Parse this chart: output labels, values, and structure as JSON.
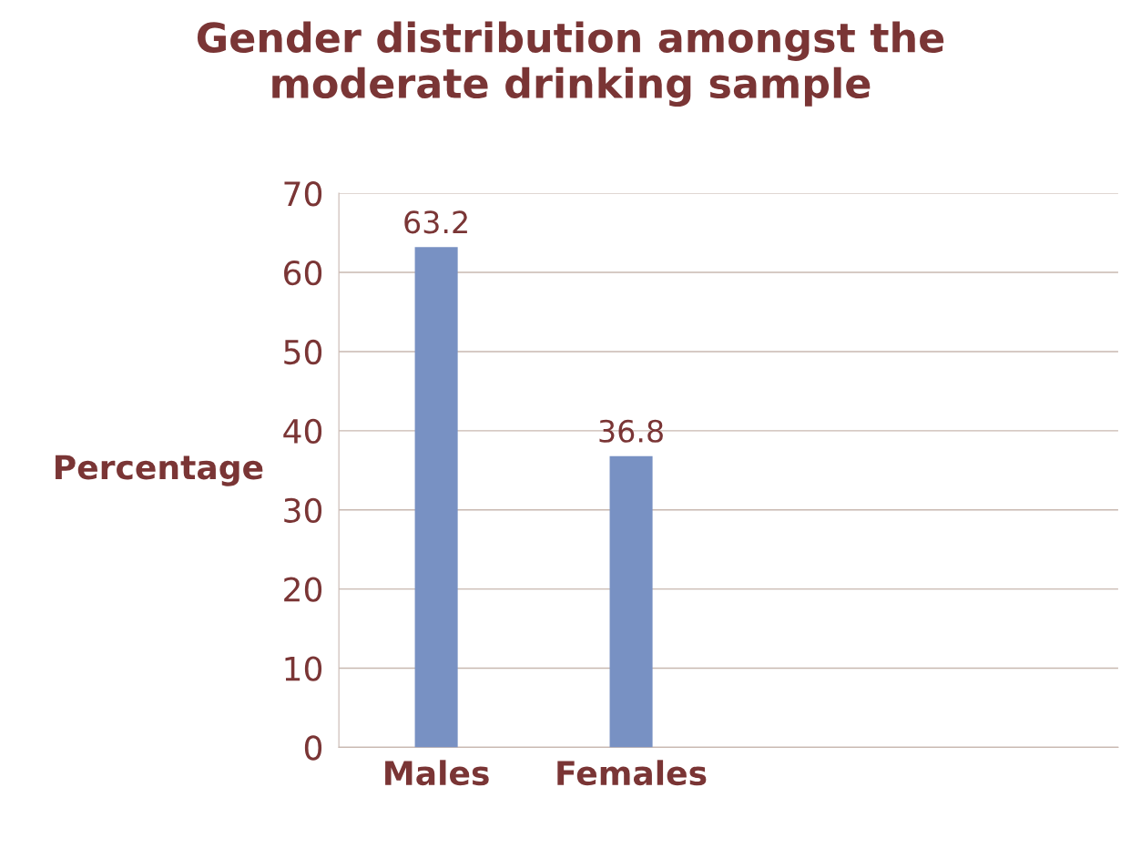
{
  "chart_data": {
    "type": "bar",
    "title": "Gender distribution amongst the\nmoderate drinking sample",
    "ylabel": "Percentage",
    "categories": [
      "Males",
      "Females",
      null,
      null
    ],
    "values": [
      63.2,
      36.8,
      null,
      null
    ],
    "color": "#7891c3",
    "ylim": [
      0,
      70
    ],
    "yticks": [
      0,
      10,
      20,
      30,
      40,
      50,
      60,
      70
    ],
    "grid": "y",
    "data_labels": true
  }
}
